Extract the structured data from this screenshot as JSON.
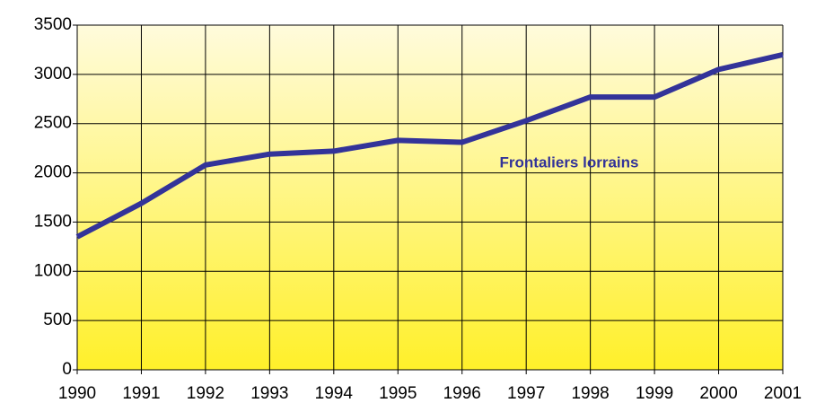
{
  "chart_data": {
    "type": "line",
    "x": [
      1990,
      1991,
      1992,
      1993,
      1994,
      1995,
      1996,
      1997,
      1998,
      1999,
      2000,
      2001
    ],
    "series": [
      {
        "name": "Frontaliers lorrains",
        "color": "#333399",
        "values": [
          1350,
          1690,
          2080,
          2190,
          2220,
          2330,
          2310,
          2530,
          2770,
          2770,
          3050,
          3200
        ]
      }
    ],
    "xlim": [
      1990,
      2001
    ],
    "xticks": [
      1990,
      1991,
      1992,
      1993,
      1994,
      1995,
      1996,
      1997,
      1998,
      1999,
      2000,
      2001
    ],
    "ylim": [
      0,
      3500
    ],
    "yticks": [
      0,
      500,
      1000,
      1500,
      2000,
      2500,
      3000,
      3500
    ],
    "grid": true
  }
}
